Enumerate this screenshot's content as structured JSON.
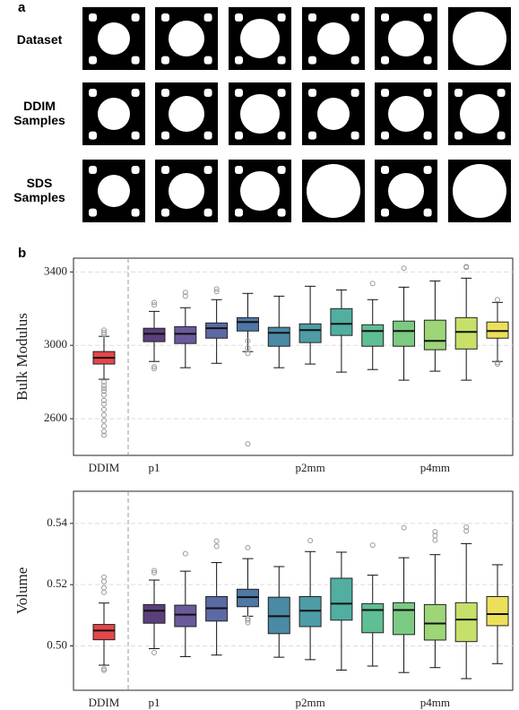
{
  "panel_a": {
    "label": "a",
    "rows": [
      "Dataset",
      "DDIM Samples",
      "SDS Samples"
    ]
  },
  "panel_b": {
    "label": "b"
  },
  "chart_data": [
    {
      "type": "box",
      "y_label": "Bulk Modulus",
      "categories": [
        "DDIM",
        "p1",
        null,
        null,
        null,
        null,
        "p2mm",
        null,
        null,
        null,
        "p4mm",
        null,
        null
      ],
      "ylim": [
        2400,
        3475
      ],
      "yticks": [
        2600,
        3000,
        3400
      ],
      "grid": true,
      "boxes": [
        {
          "color": "#e5464b",
          "whislo": 2815,
          "q1": 2898,
          "med": 2932,
          "q3": 2966,
          "whishi": 3049,
          "fliers": [
            3083,
            3070,
            3060,
            2800,
            2780,
            2765,
            2750,
            2730,
            2700,
            2680,
            2650,
            2620,
            2590,
            2560,
            2530,
            2510
          ]
        },
        {
          "color": "#5b3f7c",
          "whislo": 2912,
          "q1": 3020,
          "med": 3063,
          "q3": 3093,
          "whishi": 3185,
          "fliers": [
            3234,
            3220,
            2883,
            2873
          ]
        },
        {
          "color": "#6a5a9b",
          "whislo": 2878,
          "q1": 3010,
          "med": 3063,
          "q3": 3102,
          "whishi": 3205,
          "fliers": [
            3288,
            3268
          ]
        },
        {
          "color": "#5b69a4",
          "whislo": 2902,
          "q1": 3039,
          "med": 3093,
          "q3": 3122,
          "whishi": 3249,
          "fliers": [
            3307,
            3293
          ]
        },
        {
          "color": "#4f78a6",
          "whislo": 2966,
          "q1": 3078,
          "med": 3127,
          "q3": 3151,
          "whishi": 3283,
          "fliers": [
            3024,
            2985,
            2956,
            2463
          ]
        },
        {
          "color": "#4a8aa4",
          "whislo": 2878,
          "q1": 2995,
          "med": 3068,
          "q3": 3098,
          "whishi": 3268,
          "fliers": []
        },
        {
          "color": "#4e9ca6",
          "whislo": 2898,
          "q1": 3015,
          "med": 3083,
          "q3": 3117,
          "whishi": 3322,
          "fliers": []
        },
        {
          "color": "#51aea1",
          "whislo": 2854,
          "q1": 3054,
          "med": 3117,
          "q3": 3200,
          "whishi": 3302,
          "fliers": []
        },
        {
          "color": "#5fbe93",
          "whislo": 2868,
          "q1": 2995,
          "med": 3078,
          "q3": 3112,
          "whishi": 3249,
          "fliers": [
            3337
          ]
        },
        {
          "color": "#7bca82",
          "whislo": 2810,
          "q1": 2995,
          "med": 3078,
          "q3": 3132,
          "whishi": 3317,
          "fliers": [
            3420
          ]
        },
        {
          "color": "#9dd577",
          "whislo": 2859,
          "q1": 2976,
          "med": 3024,
          "q3": 3137,
          "whishi": 3351,
          "fliers": []
        },
        {
          "color": "#c6e06a",
          "whislo": 2810,
          "q1": 2980,
          "med": 3073,
          "q3": 3151,
          "whishi": 3366,
          "fliers": [
            3429,
            3425
          ]
        },
        {
          "color": "#ece05a",
          "whislo": 2912,
          "q1": 3039,
          "med": 3078,
          "q3": 3127,
          "whishi": 3234,
          "fliers": [
            3249,
            2907,
            2898
          ]
        }
      ]
    },
    {
      "type": "box",
      "y_label": "Volume",
      "categories": [
        "DDIM",
        "p1",
        null,
        null,
        null,
        null,
        "p2mm",
        null,
        null,
        null,
        "p4mm",
        null,
        null
      ],
      "ylim": [
        0.4855,
        0.5505
      ],
      "yticks": [
        {
          "value": 0.5,
          "label": "0.50"
        },
        0.52,
        0.54
      ],
      "grid": true,
      "boxes": [
        {
          "color": "#e5464b",
          "whislo": 0.4937,
          "q1": 0.502,
          "med": 0.505,
          "q3": 0.507,
          "whishi": 0.514,
          "fliers": [
            0.5225,
            0.521,
            0.519,
            0.5175,
            0.4925,
            0.492
          ]
        },
        {
          "color": "#5b3f7c",
          "whislo": 0.4991,
          "q1": 0.5074,
          "med": 0.5115,
          "q3": 0.5135,
          "whishi": 0.5215,
          "fliers": [
            0.5246,
            0.5239,
            0.4978
          ]
        },
        {
          "color": "#6a5a9b",
          "whislo": 0.4965,
          "q1": 0.5063,
          "med": 0.5102,
          "q3": 0.5133,
          "whishi": 0.5244,
          "fliers": [
            0.5301
          ]
        },
        {
          "color": "#5b69a4",
          "whislo": 0.497,
          "q1": 0.5081,
          "med": 0.5123,
          "q3": 0.5161,
          "whishi": 0.5272,
          "fliers": [
            0.5342,
            0.5325
          ]
        },
        {
          "color": "#4f78a6",
          "whislo": 0.5097,
          "q1": 0.5128,
          "med": 0.5159,
          "q3": 0.5185,
          "whishi": 0.5285,
          "fliers": [
            0.509,
            0.5084,
            0.5076,
            0.5321
          ]
        },
        {
          "color": "#4a8aa4",
          "whislo": 0.4963,
          "q1": 0.504,
          "med": 0.5097,
          "q3": 0.5159,
          "whishi": 0.5259,
          "fliers": []
        },
        {
          "color": "#4e9ca6",
          "whislo": 0.4955,
          "q1": 0.5063,
          "med": 0.5115,
          "q3": 0.5161,
          "whishi": 0.5308,
          "fliers": [
            0.5344
          ]
        },
        {
          "color": "#51aea1",
          "whislo": 0.4921,
          "q1": 0.5084,
          "med": 0.5138,
          "q3": 0.5221,
          "whishi": 0.5306,
          "fliers": []
        },
        {
          "color": "#5fbe93",
          "whislo": 0.4934,
          "q1": 0.5043,
          "med": 0.5117,
          "q3": 0.5138,
          "whishi": 0.5231,
          "fliers": [
            0.5329
          ]
        },
        {
          "color": "#7bca82",
          "whislo": 0.4913,
          "q1": 0.5037,
          "med": 0.5117,
          "q3": 0.5141,
          "whishi": 0.5288,
          "fliers": [
            0.5386
          ]
        },
        {
          "color": "#9dd577",
          "whislo": 0.4929,
          "q1": 0.5019,
          "med": 0.5073,
          "q3": 0.5135,
          "whishi": 0.5298,
          "fliers": [
            0.5373,
            0.536,
            0.5345
          ]
        },
        {
          "color": "#c6e06a",
          "whislo": 0.4893,
          "q1": 0.5014,
          "med": 0.5086,
          "q3": 0.5141,
          "whishi": 0.5334,
          "fliers": [
            0.5388,
            0.5375
          ]
        },
        {
          "color": "#ece05a",
          "whislo": 0.4942,
          "q1": 0.5066,
          "med": 0.5104,
          "q3": 0.5161,
          "whishi": 0.5265,
          "fliers": []
        }
      ]
    }
  ]
}
